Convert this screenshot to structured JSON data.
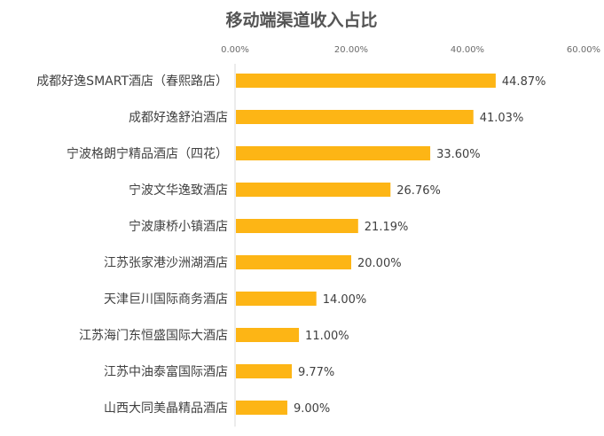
{
  "chart_data": {
    "type": "bar",
    "orientation": "horizontal",
    "title": "移动端渠道收入占比",
    "xlabel": "",
    "ylabel": "",
    "xlim": [
      0,
      60
    ],
    "ticks": [
      0,
      20,
      40,
      60
    ],
    "tick_labels": [
      "0.00%",
      "20.00%",
      "40.00%",
      "60.00%"
    ],
    "axis_position": "top",
    "grid": false,
    "legend": "none",
    "bar_color": "#FDB515",
    "categories": [
      "成都好逸SMART酒店（春熙路店）",
      "成都好逸舒泊酒店",
      "宁波格朗宁精品酒店（四花）",
      "宁波文华逸致酒店",
      "宁波康桥小镇酒店",
      "江苏张家港沙洲湖酒店",
      "天津巨川国际商务酒店",
      "江苏海门东恒盛国际大酒店",
      "江苏中油泰富国际酒店",
      "山西大同美晶精品酒店"
    ],
    "values": [
      44.87,
      41.03,
      33.6,
      26.76,
      21.19,
      20.0,
      14.0,
      11.0,
      9.77,
      9.0
    ],
    "value_labels": [
      "44.87%",
      "41.03%",
      "33.60%",
      "26.76%",
      "21.19%",
      "20.00%",
      "14.00%",
      "11.00%",
      "9.77%",
      "9.00%"
    ]
  }
}
